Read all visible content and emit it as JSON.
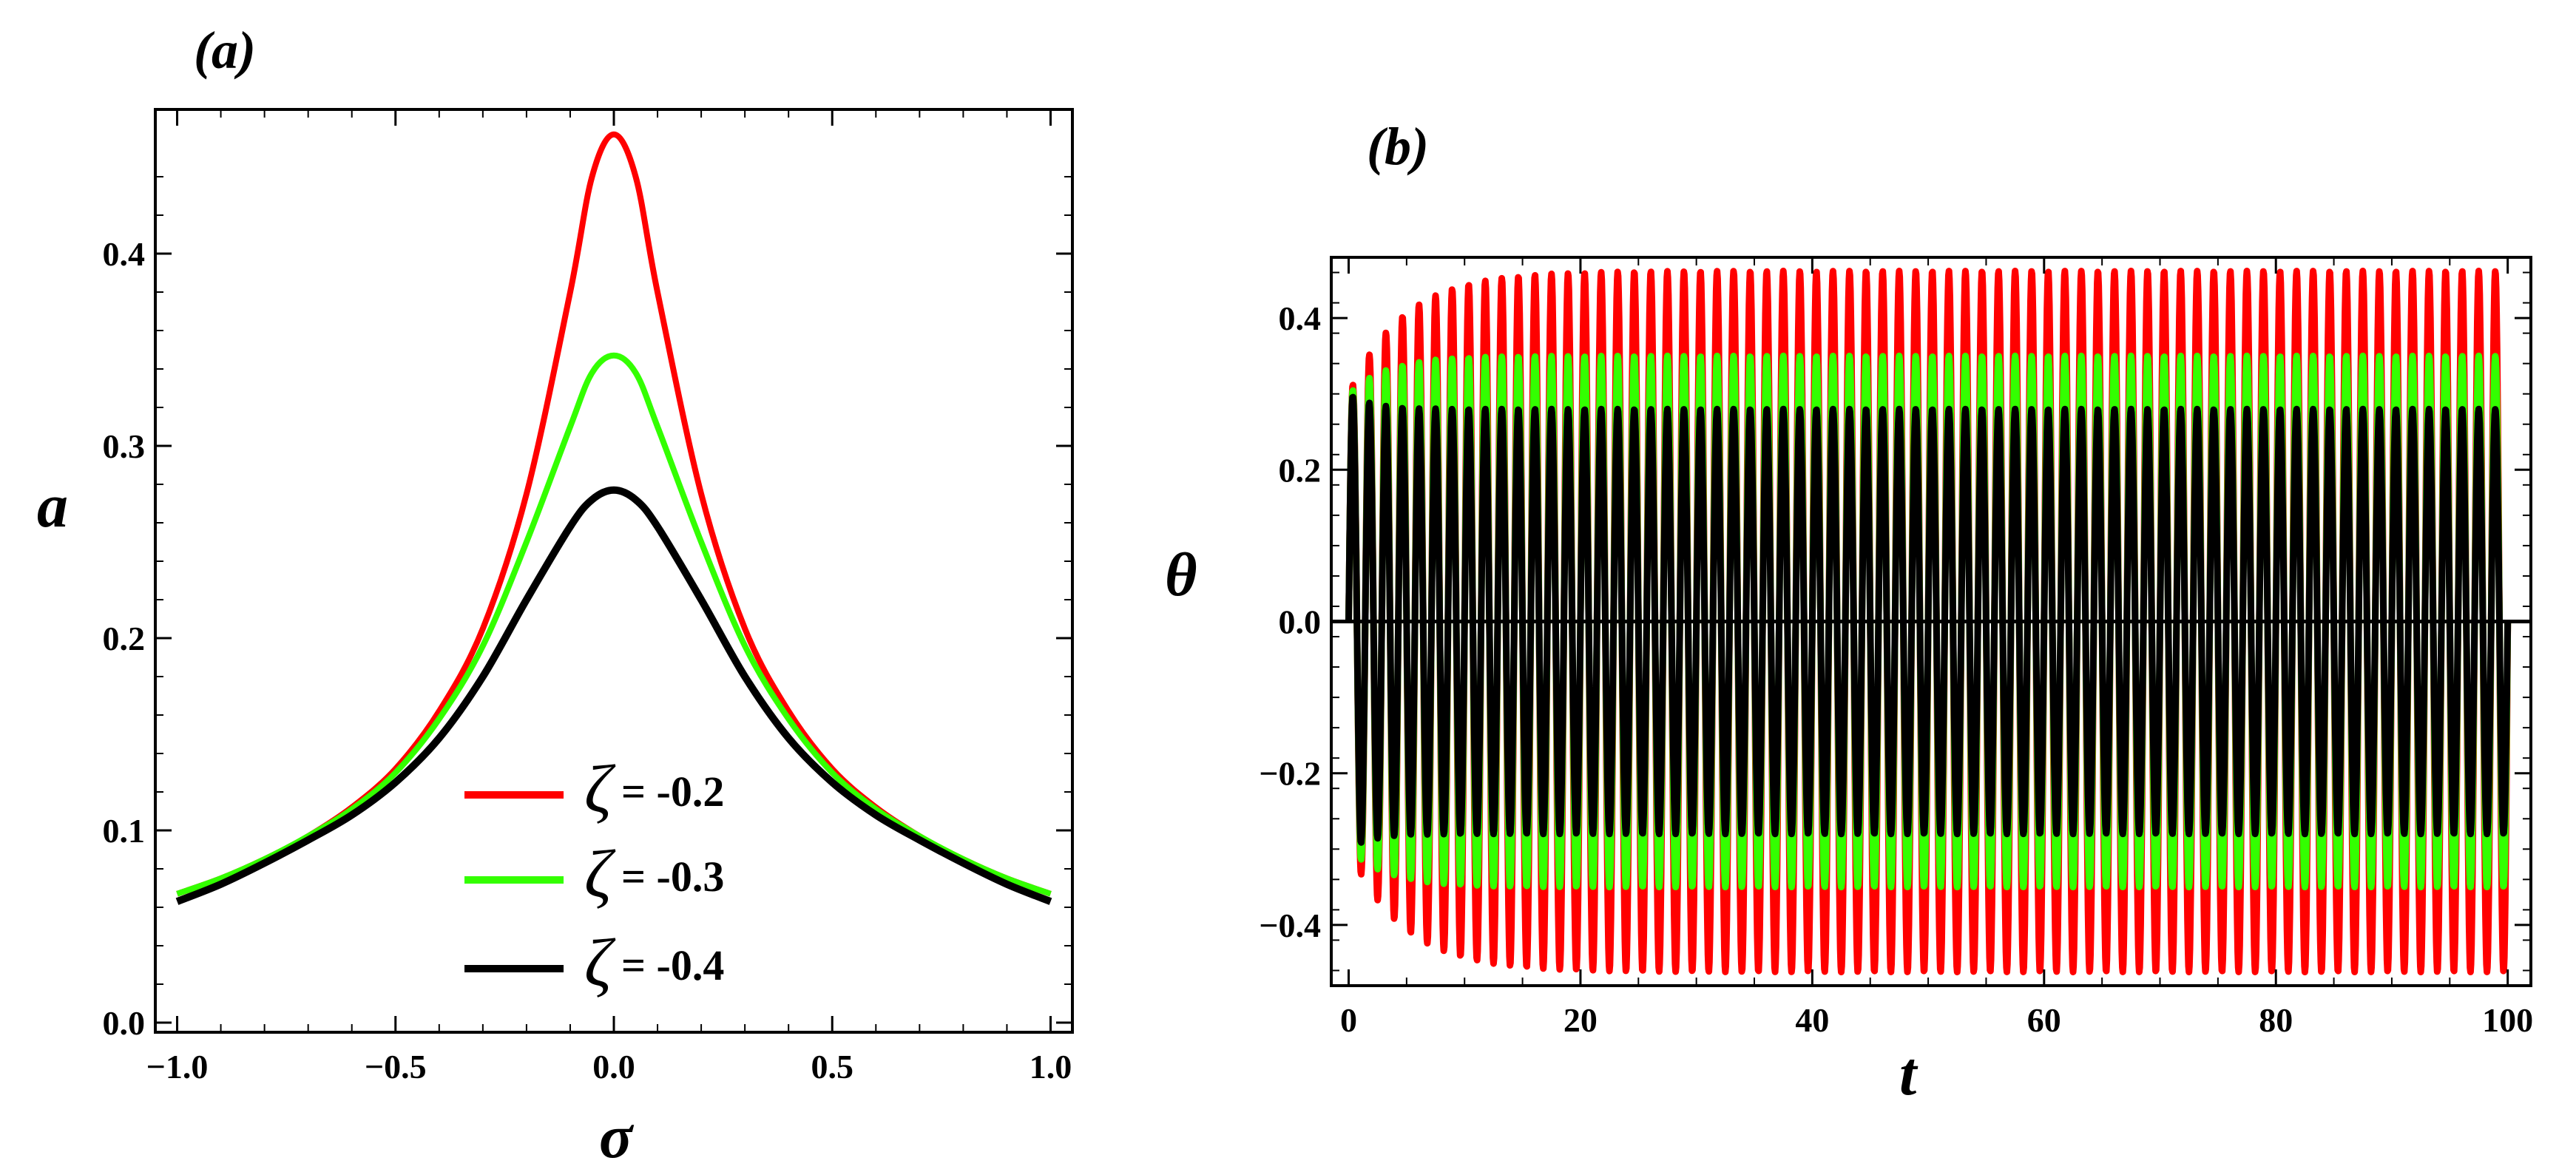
{
  "chart_data": [
    {
      "type": "line",
      "panel_label": "(a)",
      "xlabel": "σ",
      "ylabel": "a",
      "xlim": [
        -1.05,
        1.05
      ],
      "ylim": [
        -0.005,
        0.475
      ],
      "x_ticks": [
        -1.0,
        -0.5,
        0.0,
        0.5,
        1.0
      ],
      "x_tick_labels": [
        "−1.0",
        "−0.5",
        "0.0",
        "0.5",
        "1.0"
      ],
      "y_ticks": [
        0.0,
        0.1,
        0.2,
        0.3,
        0.4
      ],
      "y_tick_labels": [
        "0.0",
        "0.1",
        "0.2",
        "0.3",
        "0.4"
      ],
      "legend_position": "lower-center",
      "x": [
        -1.0,
        -0.9,
        -0.8,
        -0.7,
        -0.6,
        -0.5,
        -0.4,
        -0.3,
        -0.2,
        -0.1,
        -0.05,
        0.0,
        0.05,
        0.1,
        0.2,
        0.3,
        0.4,
        0.5,
        0.6,
        0.7,
        0.8,
        0.9,
        1.0
      ],
      "series": [
        {
          "name": "ζ",
          "legend_value": "= -0.2",
          "color": "#ff0000",
          "values": [
            0.067,
            0.075,
            0.085,
            0.097,
            0.112,
            0.132,
            0.162,
            0.205,
            0.275,
            0.38,
            0.44,
            0.462,
            0.44,
            0.38,
            0.275,
            0.205,
            0.162,
            0.132,
            0.112,
            0.097,
            0.085,
            0.075,
            0.067
          ]
        },
        {
          "name": "ζ",
          "legend_value": "= -0.3",
          "color": "#33ff00",
          "values": [
            0.067,
            0.075,
            0.085,
            0.097,
            0.111,
            0.13,
            0.158,
            0.196,
            0.25,
            0.31,
            0.338,
            0.347,
            0.338,
            0.31,
            0.25,
            0.196,
            0.158,
            0.13,
            0.111,
            0.097,
            0.085,
            0.075,
            0.067
          ]
        },
        {
          "name": "ζ",
          "legend_value": "= -0.4",
          "color": "#000000",
          "values": [
            0.063,
            0.072,
            0.083,
            0.095,
            0.108,
            0.125,
            0.148,
            0.18,
            0.22,
            0.258,
            0.272,
            0.277,
            0.272,
            0.258,
            0.22,
            0.18,
            0.148,
            0.125,
            0.108,
            0.095,
            0.083,
            0.072,
            0.063
          ]
        }
      ]
    },
    {
      "type": "line",
      "panel_label": "(b)",
      "xlabel": "t",
      "ylabel": "θ",
      "xlim": [
        -1.5,
        102
      ],
      "ylim": [
        -0.48,
        0.48
      ],
      "x_ticks": [
        0,
        20,
        40,
        60,
        80,
        100
      ],
      "x_tick_labels": [
        "0",
        "20",
        "40",
        "60",
        "80",
        "100"
      ],
      "y_ticks": [
        -0.4,
        -0.2,
        0.0,
        0.2,
        0.4
      ],
      "y_tick_labels": [
        "−0.4",
        "−0.2",
        "0.0",
        "0.2",
        "0.4"
      ],
      "t_range": [
        0,
        100
      ],
      "oscillations": 70,
      "series": [
        {
          "name": "ζ = -0.2",
          "color": "#ff0000",
          "initial_amplitude": 0.3,
          "steady_amplitude": 0.462,
          "settle_time": 14
        },
        {
          "name": "ζ = -0.3",
          "color": "#33ff00",
          "initial_amplitude": 0.3,
          "steady_amplitude": 0.35,
          "settle_time": 10
        },
        {
          "name": "ζ = -0.4",
          "color": "#000000",
          "initial_amplitude": 0.3,
          "steady_amplitude": 0.28,
          "settle_time": 6
        }
      ]
    }
  ]
}
